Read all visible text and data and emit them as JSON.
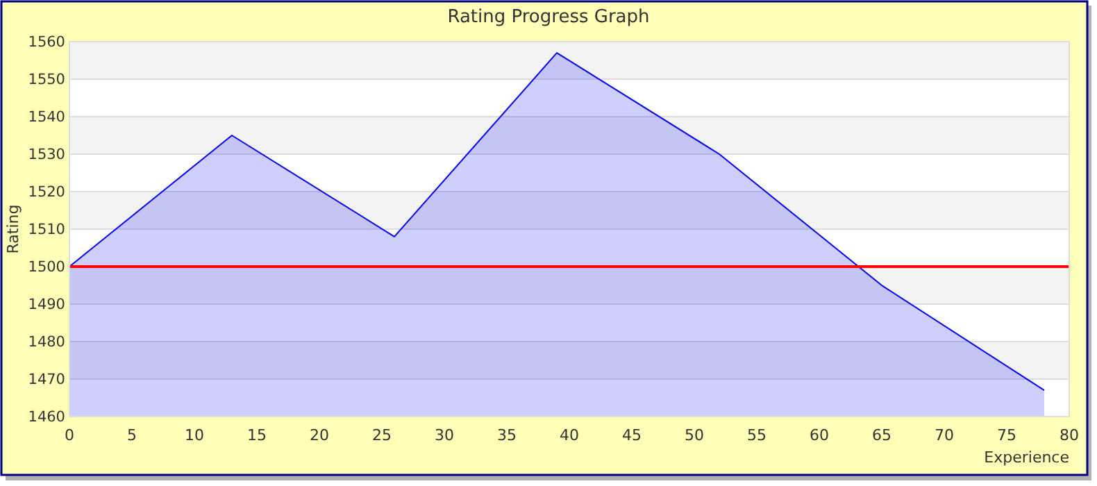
{
  "chart_data": {
    "type": "area",
    "title": "Rating Progress Graph",
    "xlabel": "Experience",
    "ylabel": "Rating",
    "x": [
      0,
      13,
      26,
      39,
      52,
      65,
      78
    ],
    "series": [
      {
        "color": "#0000ff",
        "values": [
          1500,
          1535,
          1508,
          1557,
          1530,
          1495,
          1467
        ]
      }
    ],
    "xlim": [
      0,
      80
    ],
    "xticks": [
      0,
      5,
      10,
      15,
      20,
      25,
      30,
      35,
      40,
      45,
      50,
      55,
      60,
      65,
      70,
      75,
      80
    ],
    "ylim": [
      1460,
      1560
    ],
    "yticks": [
      1460,
      1470,
      1480,
      1490,
      1500,
      1510,
      1520,
      1530,
      1540,
      1550,
      1560
    ],
    "ref_lines": [
      {
        "axis": "y",
        "value": 1500,
        "color": "#ff0000"
      }
    ],
    "grid": "y"
  }
}
